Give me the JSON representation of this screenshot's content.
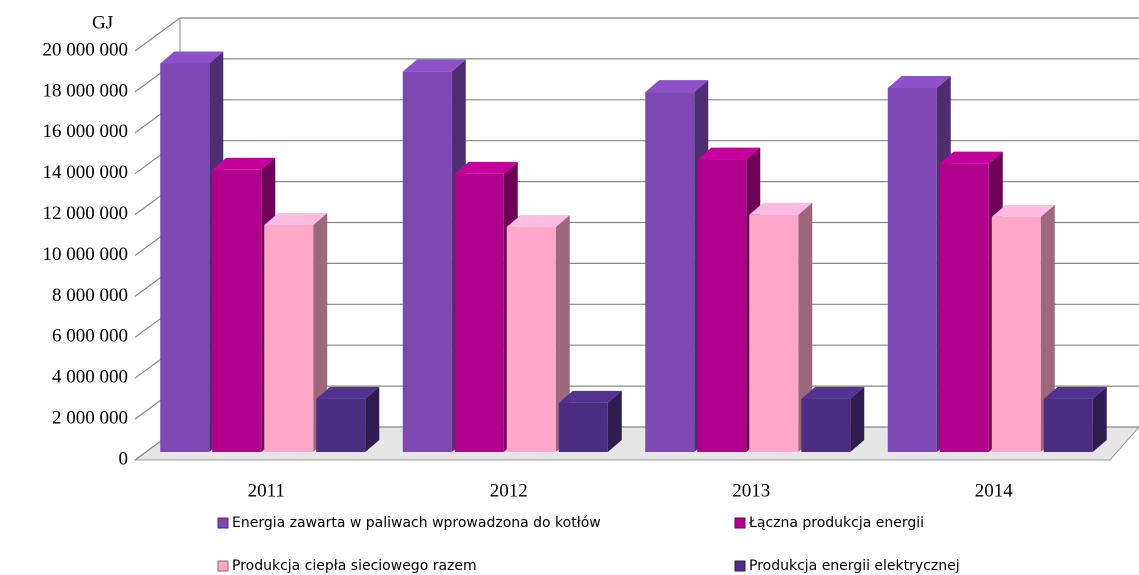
{
  "chart_data": {
    "type": "bar3d",
    "y_axis_label": "GJ",
    "categories": [
      "2011",
      "2012",
      "2013",
      "2014"
    ],
    "series": [
      {
        "name": "Energia zawarta w paliwach wprowadzona do kotłów",
        "color": "#7e48b4",
        "values": [
          19000000,
          18600000,
          17600000,
          17800000
        ]
      },
      {
        "name": "Łączna produkcja energii",
        "color": "#b0008c",
        "values": [
          13800000,
          13600000,
          14300000,
          14100000
        ]
      },
      {
        "name": "Produkcja ciepła sieciowego razem",
        "color": "#ffa7c8",
        "values": [
          11100000,
          11000000,
          11600000,
          11500000
        ]
      },
      {
        "name": "Produkcja energii elektrycznej",
        "color": "#4b2d82",
        "values": [
          2600000,
          2400000,
          2600000,
          2600000
        ]
      }
    ],
    "ylim": [
      0,
      20000000
    ],
    "yticks": [
      0,
      {
        "value": 2000000,
        "label": "2 000 000"
      },
      {
        "value": 4000000,
        "label": "4 000 000"
      },
      {
        "value": 6000000,
        "label": "6 000 000"
      },
      {
        "value": 8000000,
        "label": "8 000 000"
      },
      {
        "value": 10000000,
        "label": "10 000 000"
      },
      {
        "value": 12000000,
        "label": "12 000 000"
      },
      {
        "value": 14000000,
        "label": "14 000 000"
      },
      {
        "value": 16000000,
        "label": "16 000 000"
      },
      {
        "value": 18000000,
        "label": "18 000 000"
      },
      {
        "value": 20000000,
        "label": "20 000 000"
      }
    ],
    "grid": true
  }
}
